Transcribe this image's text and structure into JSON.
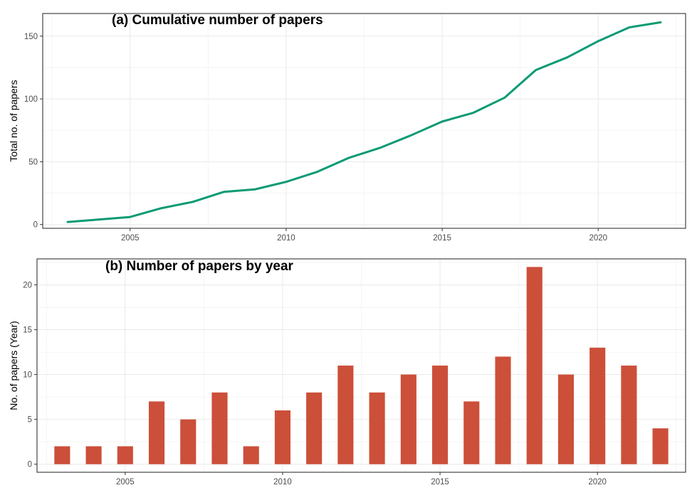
{
  "chart_data": [
    {
      "type": "line",
      "title": "(a) Cumulative number of papers",
      "xlabel": "",
      "ylabel": "Total no. of papers",
      "xlim": [
        2002.2,
        2022.8
      ],
      "ylim": [
        -3,
        168
      ],
      "x_ticks": [
        2005,
        2010,
        2015,
        2020
      ],
      "y_ticks": [
        0,
        50,
        100,
        150
      ],
      "grid": true,
      "legend": "none",
      "color": "#0b9a74",
      "x": [
        2003,
        2004,
        2005,
        2006,
        2007,
        2008,
        2009,
        2010,
        2011,
        2012,
        2013,
        2014,
        2015,
        2016,
        2017,
        2018,
        2019,
        2020,
        2021,
        2022
      ],
      "values": [
        2,
        4,
        6,
        13,
        18,
        26,
        28,
        34,
        42,
        53,
        61,
        71,
        82,
        89,
        101,
        123,
        133,
        146,
        157,
        161
      ]
    },
    {
      "type": "bar",
      "title": "(b) Number of papers by year",
      "xlabel": "",
      "ylabel": "No. of papers (Year)",
      "xlim": [
        2002.2,
        2022.8
      ],
      "ylim": [
        -0.9,
        22.9
      ],
      "x_ticks": [
        2005,
        2010,
        2015,
        2020
      ],
      "y_ticks": [
        0,
        5,
        10,
        15,
        20
      ],
      "grid": true,
      "legend": "none",
      "color": "#cc4f3a",
      "x": [
        2003,
        2004,
        2005,
        2006,
        2007,
        2008,
        2009,
        2010,
        2011,
        2012,
        2013,
        2014,
        2015,
        2016,
        2017,
        2018,
        2019,
        2020,
        2021,
        2022
      ],
      "values": [
        2,
        2,
        2,
        7,
        5,
        8,
        2,
        6,
        8,
        11,
        8,
        10,
        11,
        7,
        12,
        22,
        10,
        13,
        11,
        4
      ]
    }
  ]
}
